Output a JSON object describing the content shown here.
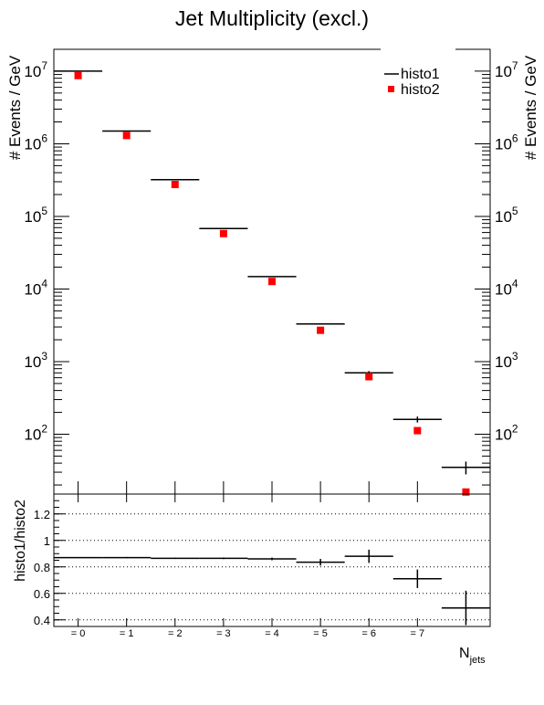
{
  "chart_data": [
    {
      "type": "scatter",
      "title": "Jet Multiplicity (excl.)",
      "ylabel": "# Events / GeV",
      "ylabel_right": "# Events / GeV",
      "yscale": "log",
      "ylim": [
        15,
        20000000
      ],
      "xlim": [
        -0.5,
        8.5
      ],
      "categories": [
        "= 0",
        "= 1",
        "= 2",
        "= 3",
        "= 4",
        "= 5",
        "= 6",
        "= 7",
        ""
      ],
      "y_ticks": [
        {
          "value": 100,
          "base": "10",
          "exp": "2"
        },
        {
          "value": 1000,
          "base": "10",
          "exp": "3"
        },
        {
          "value": 10000,
          "base": "10",
          "exp": "4"
        },
        {
          "value": 100000,
          "base": "10",
          "exp": "5"
        },
        {
          "value": 1000000,
          "base": "10",
          "exp": "6"
        },
        {
          "value": 10000000,
          "base": "10",
          "exp": "7"
        }
      ],
      "legend": "top-right",
      "series": [
        {
          "name": "histo1",
          "style": "error-bar",
          "color": "#000000",
          "x": [
            0,
            1,
            2,
            3,
            4,
            5,
            6,
            7,
            8
          ],
          "values": [
            10000000,
            1500000,
            320000,
            68000,
            14800,
            3300,
            700,
            160,
            35
          ],
          "err": [
            0,
            0,
            0,
            0,
            0,
            0,
            40,
            15,
            7
          ]
        },
        {
          "name": "histo2",
          "style": "marker",
          "color": "#ff0000",
          "x": [
            0,
            1,
            2,
            3,
            4,
            5,
            6,
            7,
            8
          ],
          "values": [
            8700000,
            1300000,
            275000,
            58000,
            12700,
            2700,
            620,
            112,
            16
          ]
        }
      ]
    },
    {
      "type": "scatter",
      "ylabel": "histo1/histo2",
      "xlabel_base": "N",
      "xlabel_sub": "jets",
      "ylim": [
        0.35,
        1.35
      ],
      "grid": "horizontal-dotted",
      "y_ticks": [
        "0.4",
        "0.6",
        "0.8",
        "1",
        "1.2"
      ],
      "categories": [
        "= 0",
        "= 1",
        "= 2",
        "= 3",
        "= 4",
        "= 5",
        "= 6",
        "= 7",
        ""
      ],
      "series": [
        {
          "style": "error-bar",
          "color": "#000000",
          "x": [
            0,
            1,
            2,
            3,
            4,
            5,
            6,
            7,
            8
          ],
          "values": [
            0.87,
            0.87,
            0.865,
            0.865,
            0.86,
            0.835,
            0.88,
            0.71,
            0.49
          ],
          "err": [
            0.003,
            0.005,
            0.005,
            0.006,
            0.01,
            0.025,
            0.05,
            0.07,
            0.13
          ]
        }
      ]
    }
  ]
}
